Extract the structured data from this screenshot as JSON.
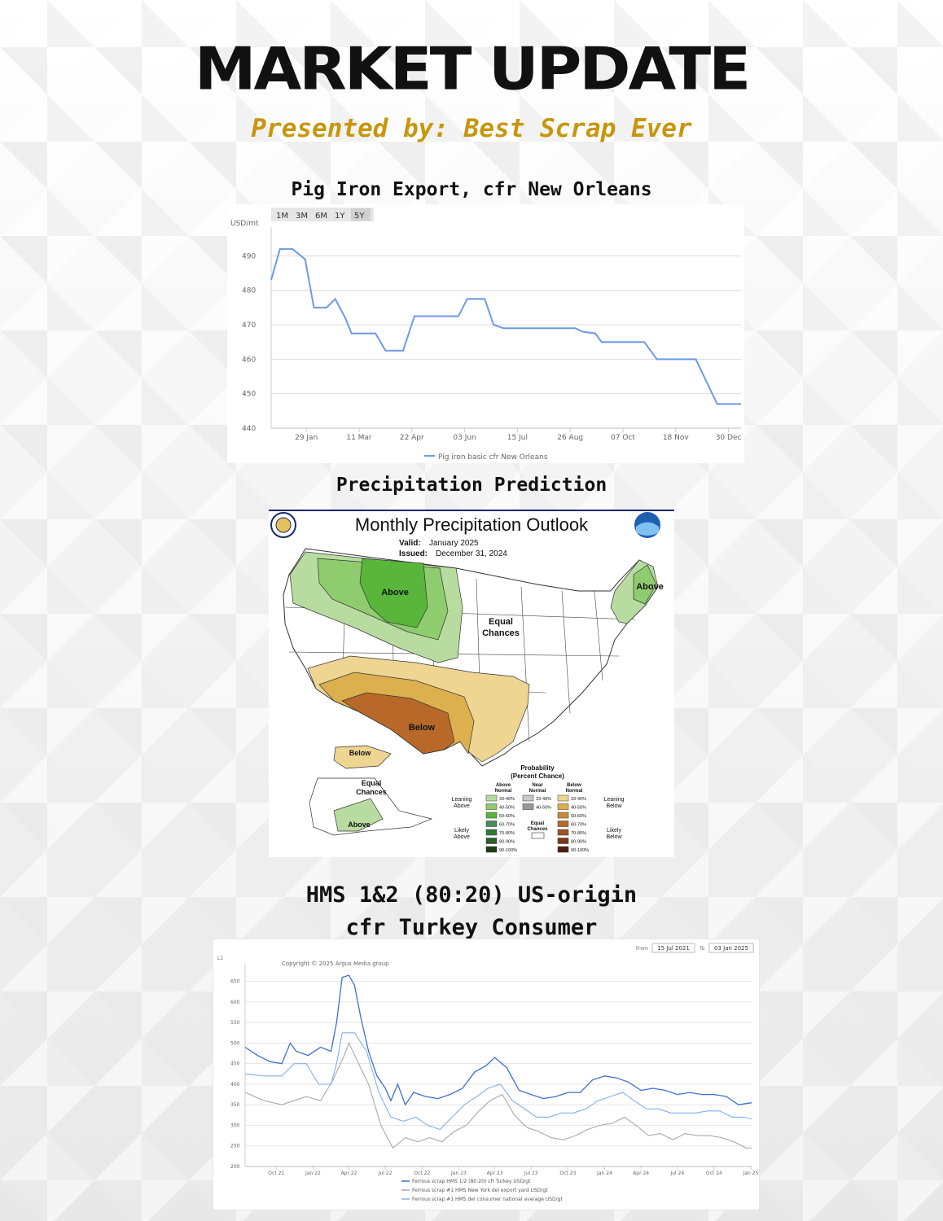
{
  "header": {
    "title": "MARKET UPDATE",
    "subtitle": "Presented by: Best Scrap Ever"
  },
  "sections": {
    "pig_iron_title": "Pig Iron Export, cfr New Orleans",
    "precip_title": "Precipitation Prediction",
    "hms_title_line1": "HMS 1&2 (80:20) US-origin",
    "hms_title_line2": "cfr Turkey Consumer"
  },
  "colors": {
    "subtitle": "#c8960c",
    "pig_iron_line": "#6b9be8",
    "hms_turkey": "#3d6fd6",
    "hms_ny": "#a9a9a9",
    "hms_consumer": "#7fb0ef"
  },
  "chart_data": [
    {
      "type": "line",
      "ylabel": "USD/mt",
      "range_buttons": [
        "1M",
        "3M",
        "6M",
        "1Y",
        "5Y"
      ],
      "x_ticks": [
        "29 Jan",
        "11 Mar",
        "22 Apr",
        "03 Jun",
        "15 Jul",
        "26 Aug",
        "07 Oct",
        "18 Nov",
        "30 Dec"
      ],
      "y_ticks": [
        440,
        450,
        460,
        470,
        480,
        490
      ],
      "ylim": [
        440,
        496
      ],
      "legend": "Pig iron basic cfr New Orleans",
      "legend_position": "bottom",
      "grid": true,
      "series": [
        {
          "name": "Pig iron basic cfr New Orleans",
          "points": [
            [
              "2024-01-01",
              483
            ],
            [
              "2024-01-08",
              492
            ],
            [
              "2024-01-18",
              492
            ],
            [
              "2024-01-28",
              489
            ],
            [
              "2024-02-04",
              475
            ],
            [
              "2024-02-14",
              475
            ],
            [
              "2024-02-21",
              477.5
            ],
            [
              "2024-02-29",
              472
            ],
            [
              "2024-03-05",
              467.5
            ],
            [
              "2024-03-24",
              467.5
            ],
            [
              "2024-04-01",
              462.5
            ],
            [
              "2024-04-15",
              462.5
            ],
            [
              "2024-04-24",
              472.5
            ],
            [
              "2024-05-29",
              472.5
            ],
            [
              "2024-06-05",
              477.5
            ],
            [
              "2024-06-19",
              477.5
            ],
            [
              "2024-06-26",
              470
            ],
            [
              "2024-07-04",
              469
            ],
            [
              "2024-08-30",
              469
            ],
            [
              "2024-09-05",
              468
            ],
            [
              "2024-09-15",
              467.5
            ],
            [
              "2024-09-20",
              465
            ],
            [
              "2024-10-24",
              465
            ],
            [
              "2024-11-03",
              460
            ],
            [
              "2024-12-04",
              460
            ],
            [
              "2024-12-21",
              447
            ],
            [
              "2025-01-09",
              447
            ]
          ]
        }
      ]
    },
    {
      "type": "line",
      "ylabel": "L1",
      "copyright": "Copyright © 2025 Argus Media group",
      "from_label": "From",
      "from_value": "15 Jul 2021",
      "to_label": "To",
      "to_value": "03 Jan 2025",
      "x_ticks": [
        "Oct 21",
        "Jan 22",
        "Apr 22",
        "Jul 22",
        "Oct 22",
        "Jan 23",
        "Apr 23",
        "Jul 23",
        "Oct 23",
        "Jan 24",
        "Apr 24",
        "Jul 24",
        "Oct 24",
        "Jan 25"
      ],
      "y_ticks": [
        200,
        250,
        300,
        350,
        400,
        450,
        500,
        550,
        600,
        650
      ],
      "ylim": [
        200,
        675
      ],
      "legend_position": "bottom",
      "grid": true,
      "series": [
        {
          "name": "Ferrous scrap HMS 1/2 (80:20) cfr Turkey USD/gt",
          "points": [
            [
              "2021-07-15",
              490
            ],
            [
              "2021-08-15",
              470
            ],
            [
              "2021-09-15",
              455
            ],
            [
              "2021-10-15",
              450
            ],
            [
              "2021-11-05",
              500
            ],
            [
              "2021-11-20",
              480
            ],
            [
              "2021-12-20",
              470
            ],
            [
              "2022-01-20",
              490
            ],
            [
              "2022-02-15",
              480
            ],
            [
              "2022-03-01",
              550
            ],
            [
              "2022-03-15",
              660
            ],
            [
              "2022-04-01",
              665
            ],
            [
              "2022-04-15",
              640
            ],
            [
              "2022-05-01",
              560
            ],
            [
              "2022-05-20",
              480
            ],
            [
              "2022-06-10",
              420
            ],
            [
              "2022-07-01",
              390
            ],
            [
              "2022-07-15",
              360
            ],
            [
              "2022-08-01",
              400
            ],
            [
              "2022-08-20",
              350
            ],
            [
              "2022-09-10",
              380
            ],
            [
              "2022-10-10",
              370
            ],
            [
              "2022-11-10",
              365
            ],
            [
              "2022-12-10",
              375
            ],
            [
              "2023-01-10",
              390
            ],
            [
              "2023-02-10",
              430
            ],
            [
              "2023-03-10",
              445
            ],
            [
              "2023-04-01",
              465
            ],
            [
              "2023-05-01",
              440
            ],
            [
              "2023-06-01",
              385
            ],
            [
              "2023-07-01",
              375
            ],
            [
              "2023-08-01",
              365
            ],
            [
              "2023-09-01",
              370
            ],
            [
              "2023-10-01",
              380
            ],
            [
              "2023-11-01",
              380
            ],
            [
              "2023-12-01",
              410
            ],
            [
              "2024-01-01",
              420
            ],
            [
              "2024-02-01",
              415
            ],
            [
              "2024-03-01",
              405
            ],
            [
              "2024-04-01",
              385
            ],
            [
              "2024-05-01",
              390
            ],
            [
              "2024-06-01",
              385
            ],
            [
              "2024-07-01",
              375
            ],
            [
              "2024-08-01",
              380
            ],
            [
              "2024-09-01",
              375
            ],
            [
              "2024-10-01",
              375
            ],
            [
              "2024-11-01",
              370
            ],
            [
              "2024-12-01",
              350
            ],
            [
              "2025-01-03",
              355
            ]
          ]
        },
        {
          "name": "Ferrous scrap #1 HMS New York del export yard USD/gt",
          "points": [
            [
              "2021-07-15",
              380
            ],
            [
              "2021-09-01",
              360
            ],
            [
              "2021-10-15",
              350
            ],
            [
              "2021-12-15",
              370
            ],
            [
              "2022-01-20",
              360
            ],
            [
              "2022-02-20",
              410
            ],
            [
              "2022-03-20",
              470
            ],
            [
              "2022-04-01",
              500
            ],
            [
              "2022-04-20",
              460
            ],
            [
              "2022-05-20",
              400
            ],
            [
              "2022-06-20",
              300
            ],
            [
              "2022-07-20",
              245
            ],
            [
              "2022-08-20",
              270
            ],
            [
              "2022-09-20",
              260
            ],
            [
              "2022-10-20",
              270
            ],
            [
              "2022-11-20",
              260
            ],
            [
              "2022-12-20",
              285
            ],
            [
              "2023-01-20",
              300
            ],
            [
              "2023-02-20",
              335
            ],
            [
              "2023-03-20",
              360
            ],
            [
              "2023-04-20",
              375
            ],
            [
              "2023-05-20",
              325
            ],
            [
              "2023-06-20",
              295
            ],
            [
              "2023-07-20",
              285
            ],
            [
              "2023-08-20",
              270
            ],
            [
              "2023-09-20",
              265
            ],
            [
              "2023-10-20",
              275
            ],
            [
              "2023-11-20",
              290
            ],
            [
              "2023-12-20",
              300
            ],
            [
              "2024-01-20",
              305
            ],
            [
              "2024-02-20",
              320
            ],
            [
              "2024-03-20",
              300
            ],
            [
              "2024-04-20",
              275
            ],
            [
              "2024-05-20",
              280
            ],
            [
              "2024-06-20",
              265
            ],
            [
              "2024-07-20",
              280
            ],
            [
              "2024-08-20",
              275
            ],
            [
              "2024-09-20",
              275
            ],
            [
              "2024-10-20",
              270
            ],
            [
              "2024-11-20",
              260
            ],
            [
              "2024-12-20",
              245
            ],
            [
              "2025-01-03",
              245
            ]
          ]
        },
        {
          "name": "Ferrous scrap #1 HMS del consumer national average USD/gt",
          "points": [
            [
              "2021-07-15",
              425
            ],
            [
              "2021-09-01",
              420
            ],
            [
              "2021-10-15",
              420
            ],
            [
              "2021-11-15",
              450
            ],
            [
              "2021-12-15",
              450
            ],
            [
              "2022-01-15",
              400
            ],
            [
              "2022-02-15",
              400
            ],
            [
              "2022-03-01",
              450
            ],
            [
              "2022-03-15",
              525
            ],
            [
              "2022-04-15",
              525
            ],
            [
              "2022-05-15",
              480
            ],
            [
              "2022-06-15",
              380
            ],
            [
              "2022-07-15",
              320
            ],
            [
              "2022-08-15",
              310
            ],
            [
              "2022-09-15",
              320
            ],
            [
              "2022-10-15",
              300
            ],
            [
              "2022-11-15",
              290
            ],
            [
              "2022-12-15",
              320
            ],
            [
              "2023-01-15",
              350
            ],
            [
              "2023-02-15",
              370
            ],
            [
              "2023-03-15",
              390
            ],
            [
              "2023-04-15",
              400
            ],
            [
              "2023-05-15",
              360
            ],
            [
              "2023-06-15",
              340
            ],
            [
              "2023-07-15",
              320
            ],
            [
              "2023-08-15",
              320
            ],
            [
              "2023-09-15",
              330
            ],
            [
              "2023-10-15",
              330
            ],
            [
              "2023-11-15",
              340
            ],
            [
              "2023-12-15",
              360
            ],
            [
              "2024-01-15",
              370
            ],
            [
              "2024-02-15",
              380
            ],
            [
              "2024-03-15",
              360
            ],
            [
              "2024-04-15",
              340
            ],
            [
              "2024-05-15",
              340
            ],
            [
              "2024-06-15",
              330
            ],
            [
              "2024-07-15",
              330
            ],
            [
              "2024-08-15",
              330
            ],
            [
              "2024-09-15",
              335
            ],
            [
              "2024-10-15",
              335
            ],
            [
              "2024-11-15",
              320
            ],
            [
              "2024-12-15",
              320
            ],
            [
              "2025-01-03",
              315
            ]
          ]
        }
      ]
    }
  ],
  "precip_map": {
    "title": "Monthly Precipitation Outlook",
    "valid_label": "Valid:",
    "valid_value": "January 2025",
    "issued_label": "Issued:",
    "issued_value": "December 31, 2024",
    "labels": {
      "above_nw": "Above",
      "above_ne": "Above",
      "equal_main_1": "Equal",
      "equal_main_2": "Chances",
      "below_sw": "Below",
      "below_ak": "Below",
      "equal_ak_1": "Equal",
      "equal_ak_2": "Chances",
      "above_ak": "Above"
    },
    "legend": {
      "heading1": "Probability",
      "heading2": "(Percent Chance)",
      "col_above_1": "Above",
      "col_above_2": "Normal",
      "col_near_1": "Near",
      "col_near_2": "Normal",
      "col_below_1": "Below",
      "col_below_2": "Normal",
      "leaning_above_1": "Leaning",
      "leaning_above_2": "Above",
      "likely_above_1": "Likely",
      "likely_above_2": "Above",
      "leaning_below_1": "Leaning",
      "leaning_below_2": "Below",
      "likely_below_1": "Likely",
      "likely_below_2": "Below",
      "equal_1": "Equal",
      "equal_2": "Chances",
      "above_rows": [
        "33-40%",
        "40-50%",
        "50-60%",
        "60-70%",
        "70-80%",
        "80-90%",
        "90-100%"
      ],
      "near_rows": [
        "33-40%",
        "40-50%"
      ],
      "below_rows": [
        "33-40%",
        "40-50%",
        "50-60%",
        "60-70%",
        "70-80%",
        "80-90%",
        "90-100%"
      ],
      "above_colors": [
        "#b8dca0",
        "#8fcc6e",
        "#5ab53b",
        "#4a8a5a",
        "#2f7a3a",
        "#2b5e2e",
        "#1d3f12"
      ],
      "near_colors": [
        "#c8c8c8",
        "#9a9a9a"
      ],
      "below_colors": [
        "#efd592",
        "#dcb04f",
        "#c98a3a",
        "#b8692a",
        "#a0522d",
        "#7a3a1d",
        "#4f2010"
      ]
    }
  }
}
